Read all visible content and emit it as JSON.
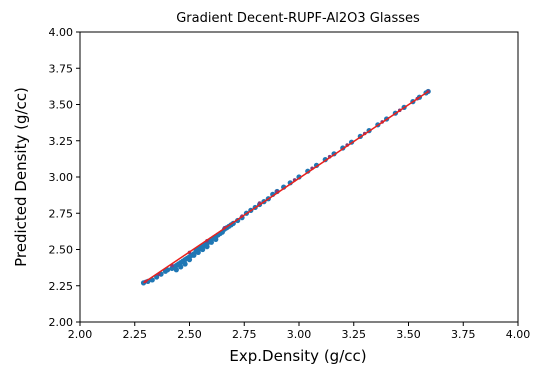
{
  "chart_data": {
    "type": "scatter",
    "title": "Gradient Decent-RUPF-Al2O3 Glasses",
    "xlabel": "Exp.Density (g/cc)",
    "ylabel": "Predicted Density (g/cc)",
    "xlim": [
      2.0,
      4.0
    ],
    "ylim": [
      2.0,
      4.0
    ],
    "xticks": [
      "2.00",
      "2.25",
      "2.50",
      "2.75",
      "3.00",
      "3.25",
      "3.50",
      "3.75",
      "4.00"
    ],
    "yticks": [
      "2.00",
      "2.25",
      "2.50",
      "2.75",
      "3.00",
      "3.25",
      "3.50",
      "3.75",
      "4.00"
    ],
    "grid": false,
    "legend": "none",
    "series": [
      {
        "kind": "scatter",
        "color": "#1f77b4",
        "points": [
          [
            2.29,
            2.27
          ],
          [
            2.31,
            2.28
          ],
          [
            2.33,
            2.29
          ],
          [
            2.35,
            2.31
          ],
          [
            2.37,
            2.33
          ],
          [
            2.39,
            2.35
          ],
          [
            2.4,
            2.36
          ],
          [
            2.42,
            2.37
          ],
          [
            2.43,
            2.38
          ],
          [
            2.44,
            2.39
          ],
          [
            2.45,
            2.4
          ],
          [
            2.46,
            2.41
          ],
          [
            2.47,
            2.42
          ],
          [
            2.48,
            2.43
          ],
          [
            2.49,
            2.44
          ],
          [
            2.5,
            2.45
          ],
          [
            2.51,
            2.46
          ],
          [
            2.52,
            2.47
          ],
          [
            2.53,
            2.49
          ],
          [
            2.54,
            2.5
          ],
          [
            2.55,
            2.51
          ],
          [
            2.56,
            2.52
          ],
          [
            2.57,
            2.53
          ],
          [
            2.58,
            2.54
          ],
          [
            2.59,
            2.56
          ],
          [
            2.6,
            2.57
          ],
          [
            2.61,
            2.58
          ],
          [
            2.62,
            2.59
          ],
          [
            2.63,
            2.6
          ],
          [
            2.64,
            2.61
          ],
          [
            2.65,
            2.62
          ],
          [
            2.66,
            2.64
          ],
          [
            2.67,
            2.65
          ],
          [
            2.68,
            2.66
          ],
          [
            2.69,
            2.67
          ],
          [
            2.7,
            2.68
          ],
          [
            2.72,
            2.7
          ],
          [
            2.74,
            2.72
          ],
          [
            2.76,
            2.75
          ],
          [
            2.78,
            2.77
          ],
          [
            2.8,
            2.79
          ],
          [
            2.82,
            2.81
          ],
          [
            2.84,
            2.83
          ],
          [
            2.86,
            2.85
          ],
          [
            2.88,
            2.88
          ],
          [
            2.9,
            2.9
          ],
          [
            2.93,
            2.93
          ],
          [
            2.96,
            2.96
          ],
          [
            3.0,
            3.0
          ],
          [
            3.04,
            3.04
          ],
          [
            3.08,
            3.08
          ],
          [
            3.12,
            3.12
          ],
          [
            3.16,
            3.16
          ],
          [
            3.2,
            3.2
          ],
          [
            3.24,
            3.24
          ],
          [
            3.28,
            3.28
          ],
          [
            3.32,
            3.32
          ],
          [
            3.36,
            3.36
          ],
          [
            3.4,
            3.4
          ],
          [
            3.44,
            3.44
          ],
          [
            3.48,
            3.48
          ],
          [
            3.52,
            3.52
          ],
          [
            3.55,
            3.55
          ],
          [
            3.58,
            3.58
          ],
          [
            3.59,
            3.59
          ],
          [
            2.44,
            2.36
          ],
          [
            2.48,
            2.4
          ],
          [
            2.52,
            2.46
          ],
          [
            2.56,
            2.5
          ],
          [
            2.6,
            2.55
          ],
          [
            2.46,
            2.38
          ],
          [
            2.5,
            2.43
          ],
          [
            2.54,
            2.48
          ],
          [
            2.58,
            2.52
          ],
          [
            2.62,
            2.57
          ]
        ]
      },
      {
        "kind": "scatter",
        "color": "#7b3f7f",
        "points": [
          [
            2.3,
            2.28
          ],
          [
            2.36,
            2.33
          ],
          [
            2.42,
            2.39
          ],
          [
            2.5,
            2.48
          ],
          [
            2.58,
            2.56
          ],
          [
            2.66,
            2.65
          ],
          [
            2.74,
            2.73
          ],
          [
            2.82,
            2.82
          ],
          [
            2.9,
            2.9
          ],
          [
            2.98,
            2.98
          ],
          [
            3.06,
            3.06
          ],
          [
            3.14,
            3.14
          ],
          [
            3.22,
            3.22
          ],
          [
            3.3,
            3.3
          ],
          [
            3.38,
            3.38
          ],
          [
            3.46,
            3.46
          ],
          [
            3.54,
            3.54
          ],
          [
            3.59,
            3.59
          ]
        ]
      },
      {
        "kind": "line",
        "color": "#e8211d",
        "points": [
          [
            2.29,
            2.27
          ],
          [
            3.59,
            3.59
          ]
        ]
      }
    ]
  }
}
